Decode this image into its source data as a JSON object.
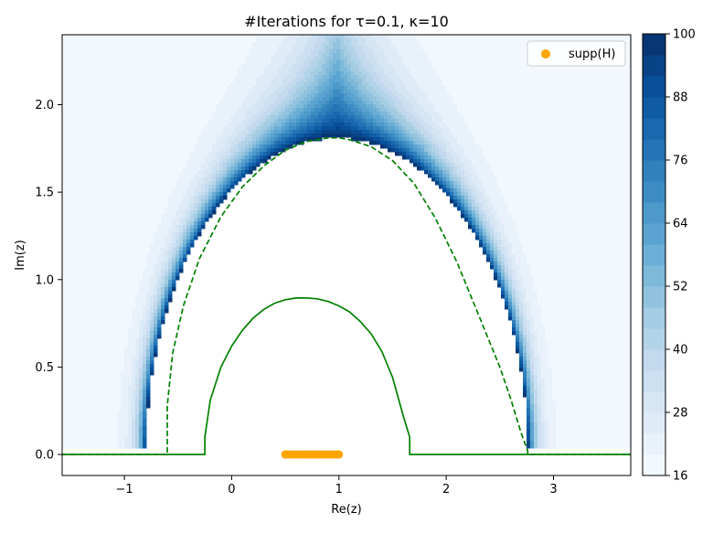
{
  "chart_data": {
    "type": "heatmap",
    "title": "#Iterations for τ=0.1, κ=10",
    "xlabel": "Re(z)",
    "ylabel": "Im(z)",
    "xlim": [
      -1.58,
      3.72
    ],
    "ylim": [
      -0.12,
      2.4
    ],
    "xticks": [
      -1,
      0,
      1,
      2,
      3
    ],
    "xtick_labels": [
      "−1",
      "0",
      "1",
      "2",
      "3"
    ],
    "yticks": [
      0.0,
      0.5,
      1.0,
      1.5,
      2.0
    ],
    "ytick_labels": [
      "0.0",
      "0.5",
      "1.0",
      "1.5",
      "2.0"
    ],
    "grid": false,
    "legend_position": "top-right",
    "colorbar": {
      "range": [
        16,
        100
      ],
      "ticks": [
        16,
        28,
        40,
        52,
        64,
        76,
        88,
        100
      ],
      "tick_labels": [
        "16",
        "28",
        "40",
        "52",
        "64",
        "76",
        "88",
        "100"
      ],
      "colormap": "Blues"
    },
    "heatmap_model": {
      "description": "iteration count grows as z approaches the dashed boundary from outside; white region inside is excluded",
      "excluded_region": {
        "type": "ellipse-cap",
        "center_x": 0.98,
        "semi_axis_x": 1.78,
        "semi_axis_y": 1.81,
        "floor_y": 0.03
      },
      "count_far": 18,
      "count_near": 100
    },
    "series": [
      {
        "name": "supp(H)",
        "kind": "scatter",
        "color": "#ffa500",
        "x": [
          0.5,
          0.52,
          0.55,
          0.58,
          0.6,
          0.62,
          0.65,
          0.68,
          0.7,
          0.72,
          0.75,
          0.78,
          0.8,
          0.82,
          0.85,
          0.88,
          0.9,
          0.92,
          0.95,
          0.98,
          1.0
        ],
        "y": [
          0,
          0,
          0,
          0,
          0,
          0,
          0,
          0,
          0,
          0,
          0,
          0,
          0,
          0,
          0,
          0,
          0,
          0,
          0,
          0,
          0
        ]
      },
      {
        "kind": "line",
        "style": "solid",
        "color": "#008000",
        "x": [
          -1.58,
          -0.25,
          -0.25,
          -0.2,
          -0.1,
          0.0,
          0.1,
          0.2,
          0.3,
          0.4,
          0.5,
          0.6,
          0.7,
          0.8,
          0.9,
          1.0,
          1.1,
          1.2,
          1.3,
          1.4,
          1.5,
          1.6,
          1.66,
          1.66,
          3.72
        ],
        "y": [
          0.0,
          0.0,
          0.1,
          0.31,
          0.5,
          0.62,
          0.71,
          0.78,
          0.83,
          0.865,
          0.885,
          0.895,
          0.895,
          0.89,
          0.875,
          0.85,
          0.815,
          0.76,
          0.69,
          0.59,
          0.44,
          0.22,
          0.1,
          0.0,
          0.0
        ]
      },
      {
        "kind": "line",
        "style": "dashed",
        "color": "#008000",
        "x": [
          -1.58,
          -0.6,
          -0.6,
          -0.55,
          -0.45,
          -0.3,
          -0.1,
          0.1,
          0.3,
          0.5,
          0.7,
          0.9,
          1.0,
          1.1,
          1.3,
          1.5,
          1.7,
          1.9,
          2.1,
          2.3,
          2.5,
          2.6,
          2.7,
          2.76,
          2.76,
          3.72
        ],
        "y": [
          0.0,
          0.0,
          0.28,
          0.58,
          0.85,
          1.12,
          1.36,
          1.53,
          1.65,
          1.74,
          1.79,
          1.81,
          1.81,
          1.8,
          1.76,
          1.68,
          1.55,
          1.35,
          1.1,
          0.8,
          0.5,
          0.32,
          0.12,
          0.02,
          0.0,
          0.0
        ]
      }
    ]
  }
}
